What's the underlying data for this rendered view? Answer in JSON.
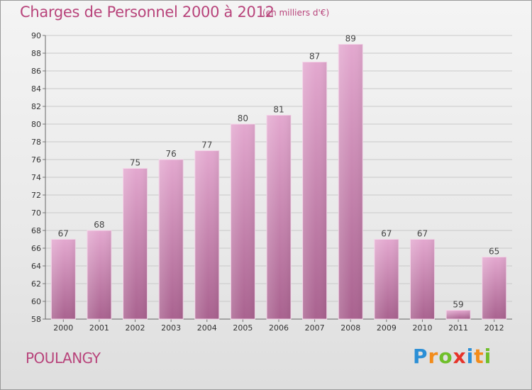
{
  "header": {
    "title": "Charges de Personnel 2000 à 2012",
    "unit": "(en milliers d'€)"
  },
  "footer": {
    "commune": "POULANGY",
    "logo": [
      "P",
      "r",
      "o",
      "x",
      "i",
      "t",
      "i"
    ],
    "logo_colors": [
      "#2b8fd6",
      "#f28c1b",
      "#6fbf2a",
      "#e6332a",
      "#2b8fd6",
      "#f28c1b",
      "#6fbf2a"
    ]
  },
  "colors": {
    "bar_top": "#e3a8cf",
    "bar_bottom": "#a9628f",
    "bar_edge": "#f3d3e7",
    "text_accent": "#b8447b"
  },
  "chart_data": {
    "type": "bar",
    "title": "Charges de Personnel 2000 à 2012",
    "subtitle": "(en milliers d'€)",
    "xlabel": "",
    "ylabel": "",
    "categories": [
      "2000",
      "2001",
      "2002",
      "2003",
      "2004",
      "2005",
      "2006",
      "2007",
      "2008",
      "2009",
      "2010",
      "2011",
      "2012"
    ],
    "values": [
      67,
      68,
      75,
      76,
      77,
      80,
      81,
      87,
      89,
      67,
      67,
      59,
      65
    ],
    "ylim": [
      58,
      90
    ],
    "yticks": [
      58,
      60,
      62,
      64,
      66,
      68,
      70,
      72,
      74,
      76,
      78,
      80,
      82,
      84,
      86,
      88,
      90
    ],
    "grid": true,
    "legend": "none"
  }
}
